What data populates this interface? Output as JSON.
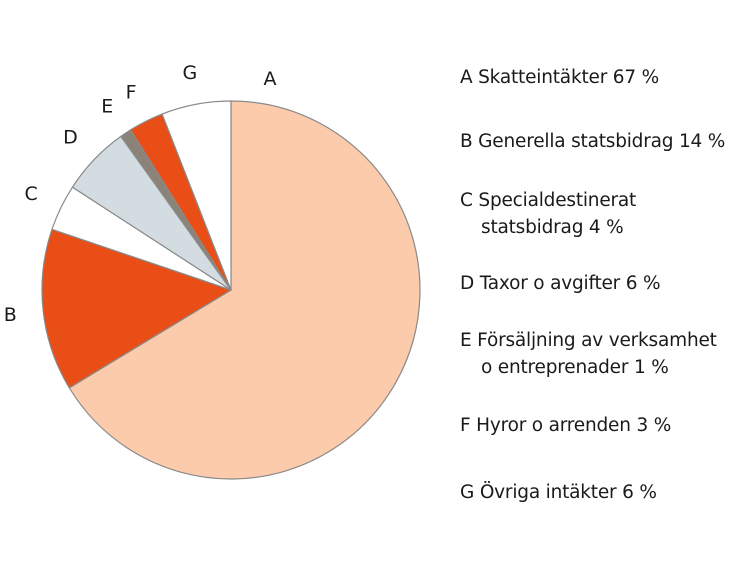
{
  "chart_data": {
    "type": "pie",
    "title": "",
    "start": "12 o'clock, clockwise",
    "slices": [
      {
        "key": "A",
        "name": "Skatteintäkter",
        "value": 67,
        "color": "#fccbab"
      },
      {
        "key": "B",
        "name": "Generella statsbidrag",
        "value": 14,
        "color": "#e84e15"
      },
      {
        "key": "C",
        "name": "Specialdestinerat statsbidrag",
        "value": 4,
        "color": "#ffffff"
      },
      {
        "key": "D",
        "name": "Taxor o avgifter",
        "value": 6,
        "color": "#d3dce0"
      },
      {
        "key": "E",
        "name": "Försäljning av verksamhet o entreprenader",
        "value": 1,
        "color": "#8c8378"
      },
      {
        "key": "F",
        "name": "Hyror o arrenden",
        "value": 3,
        "color": "#e84e15"
      },
      {
        "key": "G",
        "name": "Övriga intäkter",
        "value": 6,
        "color": "#ffffff"
      }
    ],
    "legend": [
      {
        "line1": "A Skatteintäkter 67 %",
        "line2": ""
      },
      {
        "line1": "B Generella statsbidrag 14 %",
        "line2": ""
      },
      {
        "line1": "C Specialdestinerat",
        "line2": "statsbidrag 4 %"
      },
      {
        "line1": "D Taxor o avgifter 6 %",
        "line2": ""
      },
      {
        "line1": "E Försäljning av verksamhet",
        "line2": "o entreprenader 1 %"
      },
      {
        "line1": "F Hyror o arrenden 3 %",
        "line2": ""
      },
      {
        "line1": "G Övriga intäkter 6 %",
        "line2": ""
      }
    ],
    "legend_placement": "right",
    "slice_outline_color": "#8a8a8a"
  }
}
